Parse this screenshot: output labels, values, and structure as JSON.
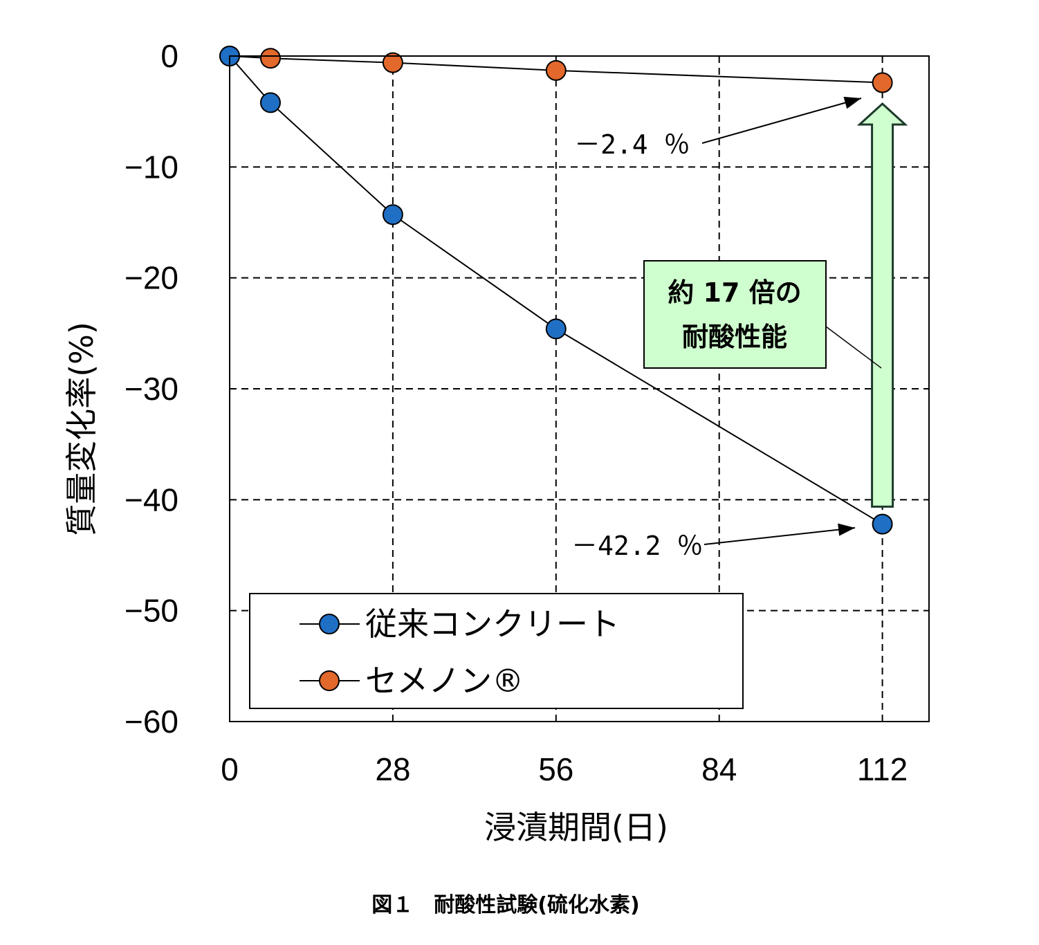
{
  "chart_data": {
    "type": "line",
    "xlabel": "浸漬期間(日)",
    "ylabel": "質量変化率(%)",
    "x_ticks": [
      "0",
      "28",
      "56",
      "84",
      "112"
    ],
    "y_ticks": [
      "0",
      "-10",
      "-20",
      "-30",
      "-40",
      "-50",
      "-60"
    ],
    "xlim": [
      0,
      120
    ],
    "ylim": [
      -60,
      0
    ],
    "grid": true,
    "legend_position": "bottom-left",
    "series": [
      {
        "name": "従来コンクリート",
        "color": "#1f6fc5",
        "x": [
          0,
          7,
          28,
          56,
          112
        ],
        "y": [
          0,
          -4.2,
          -14.3,
          -24.6,
          -42.2
        ]
      },
      {
        "name": "セメノン®",
        "color": "#e2682b",
        "x": [
          0,
          7,
          28,
          56,
          112
        ],
        "y": [
          0,
          -0.2,
          -0.6,
          -1.3,
          -2.4
        ]
      }
    ],
    "annotations": [
      {
        "text": "－2.4 ％"
      },
      {
        "text": "－42.2 ％"
      }
    ],
    "callout": {
      "line1": "約 17 倍の",
      "line2": "耐酸性能",
      "fill": "#cfffcf",
      "arrow_fill": "#cfffcf"
    }
  },
  "caption": "図１　耐酸性試験(硫化水素)"
}
